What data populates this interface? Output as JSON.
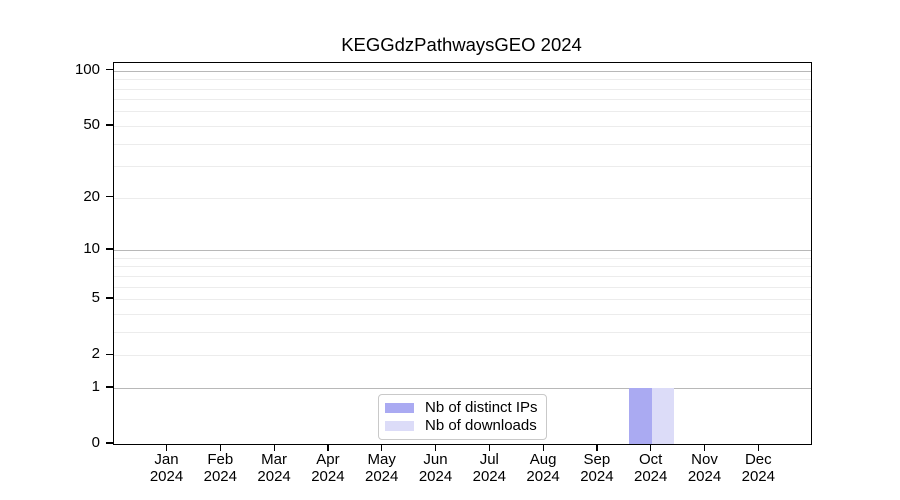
{
  "title": "KEGGdzPathwaysGEO 2024",
  "colors": {
    "spine": "#000000",
    "grid_minor": "#ececec",
    "grid_major": "#b8b8b8",
    "legend_border": "#c9c9c9",
    "background": "#ffffff"
  },
  "chart_data": {
    "type": "bar",
    "title": "KEGGdzPathwaysGEO 2024",
    "categories": [
      "Jan",
      "Feb",
      "Mar",
      "Apr",
      "May",
      "Jun",
      "Jul",
      "Aug",
      "Sep",
      "Oct",
      "Nov",
      "Dec"
    ],
    "category_year": "2024",
    "series": [
      {
        "name": "Nb of distinct IPs",
        "color": "#aaaaf2",
        "values": [
          0,
          0,
          0,
          0,
          0,
          0,
          0,
          0,
          0,
          1,
          0,
          0
        ]
      },
      {
        "name": "Nb of downloads",
        "color": "#dcdcf8",
        "values": [
          0,
          0,
          0,
          0,
          0,
          0,
          0,
          0,
          0,
          1,
          0,
          0
        ]
      }
    ],
    "xlabel": "",
    "ylabel": "",
    "yscale": "log1p",
    "ylim": [
      0,
      110
    ],
    "yticks": [
      0,
      1,
      2,
      5,
      10,
      20,
      50,
      100
    ],
    "grid_major_values": [
      1,
      10,
      100
    ],
    "grid_minor_values": [
      2,
      3,
      4,
      5,
      6,
      7,
      8,
      9,
      20,
      30,
      40,
      50,
      60,
      70,
      80,
      90
    ],
    "grid": true,
    "legend_position": "bottom-center"
  }
}
